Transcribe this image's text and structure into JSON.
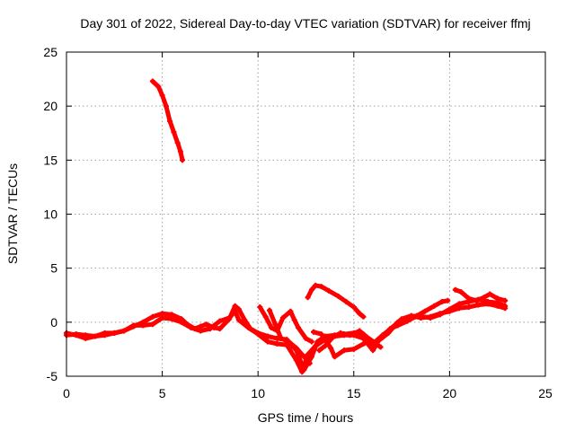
{
  "chart_data": {
    "type": "line",
    "title": "Day 301 of 2022, Sidereal Day-to-day VTEC variation (SDTVAR) for receiver ffmj",
    "xlabel": "GPS time / hours",
    "ylabel": "SDTVAR / TECUs",
    "xlim": [
      0,
      25
    ],
    "ylim": [
      -5,
      25
    ],
    "xticks": [
      0,
      5,
      10,
      15,
      20,
      25
    ],
    "yticks": [
      -5,
      0,
      5,
      10,
      15,
      20,
      25
    ],
    "grid": true,
    "color": "#ff0000",
    "series": [
      {
        "name": "segment-1",
        "points": [
          [
            4.5,
            22.3
          ],
          [
            4.8,
            21.8
          ],
          [
            5.0,
            21.0
          ],
          [
            5.2,
            20.0
          ],
          [
            5.4,
            18.6
          ],
          [
            5.6,
            17.6
          ],
          [
            5.8,
            16.6
          ],
          [
            5.95,
            15.8
          ],
          [
            6.05,
            15.0
          ]
        ]
      },
      {
        "name": "segment-2",
        "points": [
          [
            0.0,
            -1.2
          ],
          [
            0.5,
            -1.1
          ],
          [
            1.0,
            -1.2
          ],
          [
            1.5,
            -1.3
          ],
          [
            2.0,
            -1.0
          ],
          [
            2.5,
            -1.0
          ],
          [
            3.0,
            -0.8
          ],
          [
            3.5,
            -0.4
          ],
          [
            4.0,
            0.0
          ],
          [
            4.5,
            0.5
          ],
          [
            5.0,
            0.8
          ],
          [
            5.5,
            0.7
          ],
          [
            6.0,
            0.3
          ],
          [
            6.3,
            -0.2
          ],
          [
            6.7,
            -0.6
          ],
          [
            7.0,
            -0.4
          ],
          [
            7.3,
            -0.2
          ],
          [
            7.7,
            -0.5
          ],
          [
            8.0,
            -0.6
          ],
          [
            8.5,
            0.3
          ],
          [
            8.8,
            1.5
          ],
          [
            9.0,
            1.2
          ],
          [
            9.3,
            0.2
          ],
          [
            9.6,
            -0.6
          ],
          [
            10.0,
            -1.0
          ],
          [
            10.5,
            -1.3
          ],
          [
            11.0,
            -1.5
          ],
          [
            11.5,
            -1.6
          ],
          [
            12.0,
            -2.6
          ],
          [
            12.4,
            -4.4
          ],
          [
            12.8,
            -3.2
          ],
          [
            13.1,
            -1.8
          ],
          [
            13.5,
            -1.3
          ],
          [
            14.0,
            -1.2
          ],
          [
            14.5,
            -1.1
          ],
          [
            15.0,
            -1.0
          ],
          [
            15.5,
            -1.1
          ],
          [
            16.0,
            -2.0
          ],
          [
            16.5,
            -1.2
          ],
          [
            17.0,
            -0.5
          ],
          [
            17.5,
            0.3
          ],
          [
            18.0,
            0.6
          ],
          [
            18.5,
            0.4
          ],
          [
            19.0,
            0.5
          ],
          [
            19.5,
            0.8
          ],
          [
            20.0,
            1.0
          ],
          [
            20.5,
            1.3
          ],
          [
            21.0,
            1.4
          ],
          [
            21.5,
            1.6
          ],
          [
            22.0,
            1.7
          ],
          [
            22.5,
            1.5
          ],
          [
            22.9,
            1.3
          ]
        ]
      },
      {
        "name": "segment-3",
        "points": [
          [
            0.0,
            -1.0
          ],
          [
            0.5,
            -1.2
          ],
          [
            1.0,
            -1.5
          ],
          [
            1.5,
            -1.3
          ],
          [
            2.0,
            -1.2
          ],
          [
            2.5,
            -1.0
          ],
          [
            3.0,
            -0.8
          ],
          [
            3.5,
            -0.3
          ],
          [
            4.0,
            -0.3
          ],
          [
            4.5,
            -0.2
          ],
          [
            5.0,
            0.4
          ],
          [
            5.5,
            0.3
          ],
          [
            6.0,
            0.0
          ],
          [
            6.5,
            -0.5
          ],
          [
            7.0,
            -0.8
          ],
          [
            7.5,
            -0.6
          ],
          [
            8.0,
            0.1
          ],
          [
            8.5,
            0.4
          ],
          [
            8.8,
            1.0
          ],
          [
            9.0,
            0.2
          ],
          [
            9.5,
            -0.5
          ],
          [
            10.0,
            -1.1
          ],
          [
            10.5,
            -1.8
          ],
          [
            11.0,
            -2.0
          ],
          [
            11.5,
            -2.1
          ],
          [
            12.0,
            -3.5
          ],
          [
            12.3,
            -4.6
          ],
          [
            12.6,
            -3.0
          ],
          [
            13.0,
            -2.2
          ],
          [
            13.5,
            -1.6
          ],
          [
            14.0,
            -1.3
          ],
          [
            14.5,
            -1.2
          ],
          [
            15.0,
            -1.2
          ],
          [
            15.5,
            -1.5
          ],
          [
            16.0,
            -2.6
          ],
          [
            16.3,
            -1.7
          ],
          [
            16.8,
            -1.0
          ],
          [
            17.3,
            0.0
          ],
          [
            17.8,
            0.4
          ],
          [
            18.3,
            0.6
          ],
          [
            19.0,
            0.4
          ],
          [
            19.5,
            0.7
          ],
          [
            20.0,
            1.2
          ],
          [
            20.5,
            1.7
          ],
          [
            21.0,
            1.9
          ],
          [
            21.5,
            2.1
          ],
          [
            22.0,
            1.9
          ],
          [
            22.5,
            1.8
          ],
          [
            22.9,
            1.5
          ]
        ]
      },
      {
        "name": "segment-4",
        "points": [
          [
            10.1,
            1.4
          ],
          [
            10.4,
            0.5
          ],
          [
            10.7,
            -0.5
          ],
          [
            11.0,
            -0.8
          ],
          [
            11.3,
            0.4
          ],
          [
            11.7,
            1.0
          ],
          [
            11.9,
            0.2
          ],
          [
            12.1,
            -0.5
          ],
          [
            12.5,
            -1.5
          ],
          [
            12.8,
            -1.8
          ]
        ]
      },
      {
        "name": "segment-5",
        "points": [
          [
            10.6,
            1.1
          ],
          [
            10.9,
            -0.2
          ],
          [
            11.2,
            -1.5
          ],
          [
            11.6,
            -1.8
          ],
          [
            12.0,
            -2.4
          ],
          [
            12.4,
            -3.2
          ],
          [
            12.7,
            -3.8
          ]
        ]
      },
      {
        "name": "segment-6",
        "points": [
          [
            12.6,
            2.3
          ],
          [
            12.8,
            3.0
          ],
          [
            13.0,
            3.4
          ],
          [
            13.3,
            3.3
          ],
          [
            13.7,
            2.9
          ],
          [
            14.2,
            2.4
          ],
          [
            14.6,
            1.9
          ],
          [
            15.0,
            1.4
          ],
          [
            15.3,
            0.8
          ],
          [
            15.5,
            0.5
          ]
        ]
      },
      {
        "name": "segment-7",
        "points": [
          [
            13.2,
            -2.6
          ],
          [
            13.5,
            -2.2
          ],
          [
            13.9,
            -1.4
          ],
          [
            14.3,
            -1.0
          ],
          [
            14.8,
            -1.2
          ],
          [
            15.3,
            -0.8
          ],
          [
            15.7,
            -1.4
          ],
          [
            16.1,
            -1.9
          ]
        ]
      },
      {
        "name": "segment-8",
        "points": [
          [
            12.9,
            -0.9
          ],
          [
            13.3,
            -1.1
          ],
          [
            13.8,
            -2.4
          ],
          [
            14.0,
            -3.2
          ],
          [
            14.5,
            -2.6
          ],
          [
            15.0,
            -2.5
          ],
          [
            15.5,
            -2.0
          ],
          [
            15.9,
            -1.7
          ],
          [
            16.4,
            -2.3
          ]
        ]
      },
      {
        "name": "segment-9",
        "points": [
          [
            16.5,
            -1.4
          ],
          [
            16.9,
            -0.6
          ],
          [
            17.3,
            -0.3
          ],
          [
            17.8,
            0.1
          ],
          [
            18.2,
            0.5
          ],
          [
            18.7,
            1.0
          ],
          [
            19.2,
            1.5
          ],
          [
            19.6,
            1.9
          ],
          [
            19.9,
            2.0
          ]
        ]
      },
      {
        "name": "segment-10",
        "points": [
          [
            20.3,
            3.0
          ],
          [
            20.6,
            2.8
          ],
          [
            21.0,
            2.2
          ],
          [
            21.4,
            2.0
          ],
          [
            21.8,
            2.3
          ],
          [
            22.1,
            2.6
          ],
          [
            22.5,
            2.2
          ],
          [
            22.9,
            2.0
          ]
        ]
      }
    ]
  }
}
